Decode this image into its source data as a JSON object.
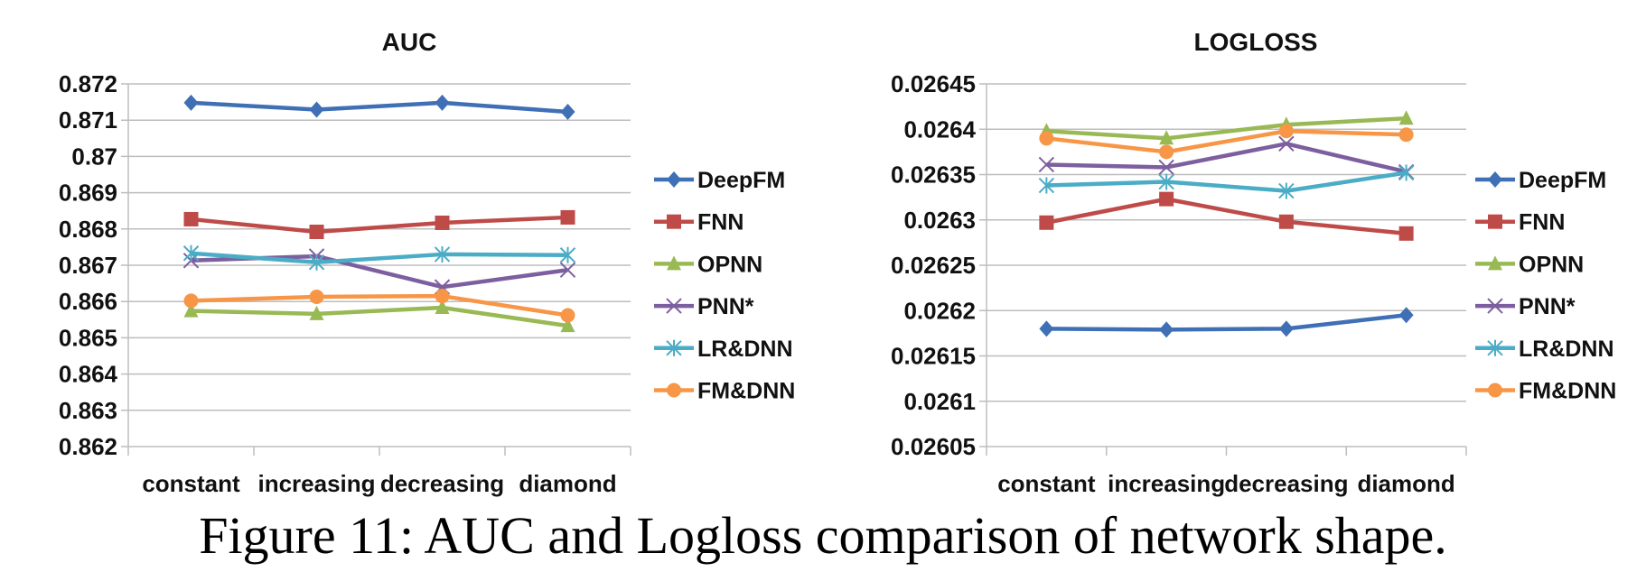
{
  "caption": "Figure 11: AUC and Logloss comparison of network shape.",
  "chart_data": [
    {
      "type": "line",
      "title": "AUC",
      "xlabel": "",
      "ylabel": "",
      "categories": [
        "constant",
        "increasing",
        "decreasing",
        "diamond"
      ],
      "ylim": [
        0.862,
        0.872
      ],
      "yticks": [
        "0.872",
        "0.871",
        "0.87",
        "0.869",
        "0.868",
        "0.867",
        "0.866",
        "0.865",
        "0.864",
        "0.863",
        "0.862"
      ],
      "grid": true,
      "legend": "right",
      "series": [
        {
          "name": "DeepFM",
          "color": "#3f6fb5",
          "marker": "diamond",
          "values": [
            0.87148,
            0.87129,
            0.87148,
            0.87123
          ]
        },
        {
          "name": "FNN",
          "color": "#be4b48",
          "marker": "square",
          "values": [
            0.86827,
            0.86792,
            0.86817,
            0.86832
          ]
        },
        {
          "name": "OPNN",
          "color": "#98b954",
          "marker": "triangle",
          "values": [
            0.86574,
            0.86566,
            0.86583,
            0.86533
          ]
        },
        {
          "name": "PNN*",
          "color": "#7d5fa0",
          "marker": "x",
          "values": [
            0.86713,
            0.86725,
            0.8664,
            0.86687
          ]
        },
        {
          "name": "LR&DNN",
          "color": "#4bacc6",
          "marker": "asterisk",
          "values": [
            0.86733,
            0.86708,
            0.8673,
            0.86728
          ]
        },
        {
          "name": "FM&DNN",
          "color": "#f79646",
          "marker": "circle",
          "values": [
            0.86602,
            0.86613,
            0.86615,
            0.86562
          ]
        }
      ]
    },
    {
      "type": "line",
      "title": "LOGLOSS",
      "xlabel": "",
      "ylabel": "",
      "categories": [
        "constant",
        "increasing",
        "decreasing",
        "diamond"
      ],
      "ylim": [
        0.02605,
        0.02645
      ],
      "yticks": [
        "0.02645",
        "0.0264",
        "0.02635",
        "0.0263",
        "0.02625",
        "0.0262",
        "0.02615",
        "0.0261",
        "0.02605"
      ],
      "grid": true,
      "legend": "right",
      "series": [
        {
          "name": "DeepFM",
          "color": "#3f6fb5",
          "marker": "diamond",
          "values": [
            0.02618,
            0.026179,
            0.02618,
            0.026195
          ]
        },
        {
          "name": "FNN",
          "color": "#be4b48",
          "marker": "square",
          "values": [
            0.026297,
            0.026323,
            0.026298,
            0.026285
          ]
        },
        {
          "name": "OPNN",
          "color": "#98b954",
          "marker": "triangle",
          "values": [
            0.026398,
            0.02639,
            0.026405,
            0.026412
          ]
        },
        {
          "name": "PNN*",
          "color": "#7d5fa0",
          "marker": "x",
          "values": [
            0.026361,
            0.026358,
            0.026384,
            0.026353
          ]
        },
        {
          "name": "LR&DNN",
          "color": "#4bacc6",
          "marker": "asterisk",
          "values": [
            0.026338,
            0.026342,
            0.026332,
            0.026352
          ]
        },
        {
          "name": "FM&DNN",
          "color": "#f79646",
          "marker": "circle",
          "values": [
            0.02639,
            0.026375,
            0.026398,
            0.026394
          ]
        }
      ]
    }
  ]
}
